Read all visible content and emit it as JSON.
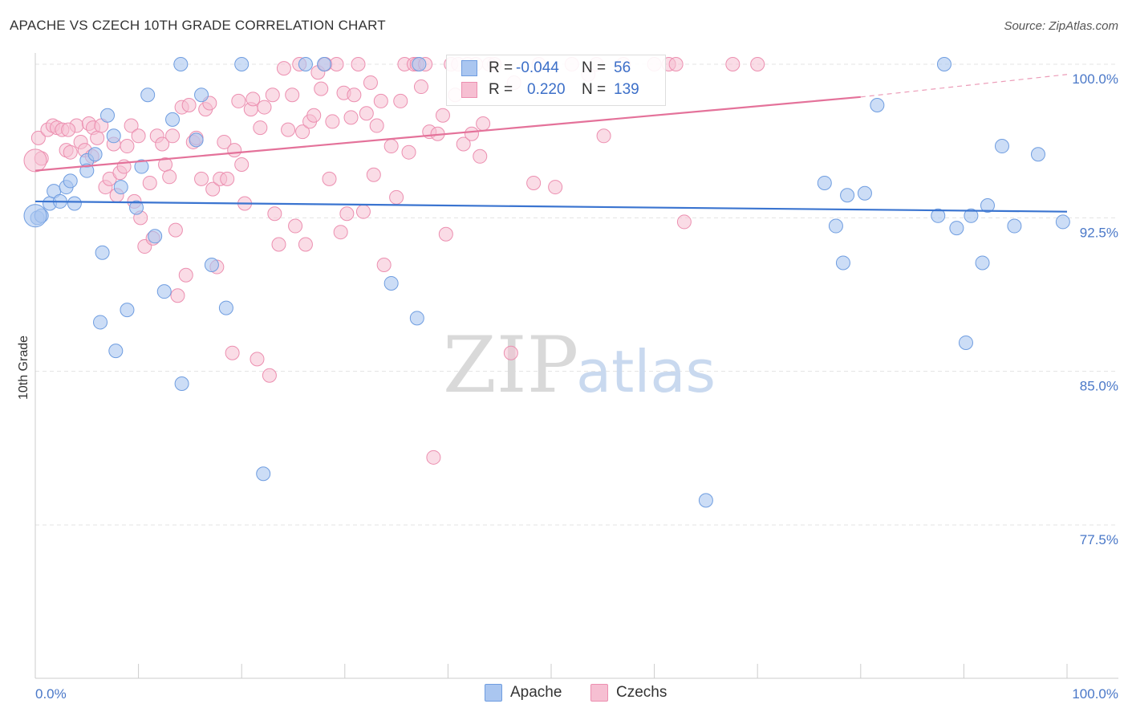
{
  "title": "APACHE VS CZECH 10TH GRADE CORRELATION CHART",
  "source": "Source: ZipAtlas.com",
  "watermark": {
    "zip": "ZIP",
    "atlas": "atlas"
  },
  "legend": {
    "apache": {
      "r_label": "R =",
      "r_value": "-0.044",
      "n_label": "N =",
      "n_value": "56"
    },
    "czechs": {
      "r_label": "R =",
      "r_value": "0.220",
      "n_label": "N =",
      "n_value": "139"
    }
  },
  "bottom_legend": {
    "apache": "Apache",
    "czechs": "Czechs"
  },
  "colors": {
    "apache_fill": "#aac6f0",
    "apache_stroke": "#6f9de0",
    "apache_line": "#3a74d0",
    "czech_fill": "#f6bfd2",
    "czech_stroke": "#ec8fb0",
    "czech_line": "#e4729a",
    "tick_label": "#4a78c8",
    "grid": "#e3e3e3"
  },
  "chart_data": {
    "type": "scatter",
    "title": "APACHE VS CZECH 10TH GRADE CORRELATION CHART",
    "xlabel": "",
    "ylabel": "10th Grade",
    "xlim": [
      0,
      100
    ],
    "ylim": [
      70,
      100.7
    ],
    "x_ticks": [
      "0.0%",
      "100.0%"
    ],
    "y_ticks": [
      {
        "value": 77.5,
        "label": "77.5%"
      },
      {
        "value": 85.0,
        "label": "85.0%"
      },
      {
        "value": 92.5,
        "label": "92.5%"
      },
      {
        "value": 100.0,
        "label": "100.0%"
      }
    ],
    "grid": true,
    "series": [
      {
        "name": "Apache",
        "r": -0.044,
        "n": 56,
        "trend": {
          "x": [
            0,
            100
          ],
          "y": [
            93.3,
            92.8
          ]
        },
        "points": [
          [
            0.2,
            92.5
          ],
          [
            0.6,
            92.6
          ],
          [
            1.4,
            93.2
          ],
          [
            1.8,
            93.8
          ],
          [
            2.4,
            93.3
          ],
          [
            3.0,
            94.0
          ],
          [
            3.4,
            94.3
          ],
          [
            3.8,
            93.2
          ],
          [
            5.0,
            95.3
          ],
          [
            5.0,
            94.8
          ],
          [
            5.8,
            95.6
          ],
          [
            6.3,
            87.4
          ],
          [
            6.5,
            90.8
          ],
          [
            7.0,
            97.5
          ],
          [
            7.6,
            96.5
          ],
          [
            7.8,
            86.0
          ],
          [
            8.3,
            94.0
          ],
          [
            8.9,
            88.0
          ],
          [
            9.8,
            93.0
          ],
          [
            10.3,
            95.0
          ],
          [
            10.9,
            98.5
          ],
          [
            11.6,
            91.6
          ],
          [
            12.5,
            88.9
          ],
          [
            13.3,
            97.3
          ],
          [
            14.1,
            100.0
          ],
          [
            14.2,
            84.4
          ],
          [
            15.6,
            96.3
          ],
          [
            16.1,
            98.5
          ],
          [
            17.1,
            90.2
          ],
          [
            18.5,
            88.1
          ],
          [
            20.0,
            100.0
          ],
          [
            22.1,
            80.0
          ],
          [
            26.2,
            100.0
          ],
          [
            28.0,
            100.0
          ],
          [
            34.5,
            89.3
          ],
          [
            37.0,
            87.6
          ],
          [
            37.2,
            100.0
          ],
          [
            65.0,
            78.7
          ],
          [
            76.5,
            94.2
          ],
          [
            77.6,
            92.1
          ],
          [
            78.3,
            90.3
          ],
          [
            78.7,
            93.6
          ],
          [
            80.4,
            93.7
          ],
          [
            81.6,
            98.0
          ],
          [
            87.5,
            92.6
          ],
          [
            88.1,
            100.0
          ],
          [
            89.3,
            92.0
          ],
          [
            90.2,
            86.4
          ],
          [
            90.7,
            92.6
          ],
          [
            91.8,
            90.3
          ],
          [
            92.3,
            93.1
          ],
          [
            93.7,
            96.0
          ],
          [
            94.9,
            92.1
          ],
          [
            97.2,
            95.6
          ],
          [
            99.6,
            92.3
          ],
          [
            0.0,
            92.6
          ]
        ]
      },
      {
        "name": "Czechs",
        "r": 0.22,
        "n": 139,
        "trend": {
          "x": [
            0,
            80
          ],
          "y": [
            94.8,
            98.4
          ]
        },
        "trend_dashed": {
          "x": [
            80,
            100
          ],
          "y": [
            98.4,
            99.5
          ]
        },
        "points": [
          [
            0.3,
            96.4
          ],
          [
            0.6,
            95.4
          ],
          [
            1.2,
            96.8
          ],
          [
            1.7,
            97.0
          ],
          [
            2.1,
            96.9
          ],
          [
            2.6,
            96.8
          ],
          [
            3.0,
            95.8
          ],
          [
            3.4,
            95.7
          ],
          [
            4.0,
            97.0
          ],
          [
            4.4,
            96.2
          ],
          [
            4.8,
            95.8
          ],
          [
            5.2,
            97.1
          ],
          [
            5.6,
            96.9
          ],
          [
            6.0,
            96.4
          ],
          [
            6.4,
            97.0
          ],
          [
            6.8,
            94.0
          ],
          [
            7.2,
            94.4
          ],
          [
            7.6,
            96.1
          ],
          [
            7.9,
            93.6
          ],
          [
            8.2,
            94.7
          ],
          [
            8.6,
            95.0
          ],
          [
            8.9,
            96.0
          ],
          [
            9.3,
            97.0
          ],
          [
            9.6,
            93.3
          ],
          [
            10.0,
            96.5
          ],
          [
            10.2,
            92.5
          ],
          [
            10.6,
            91.1
          ],
          [
            11.1,
            94.2
          ],
          [
            11.4,
            91.5
          ],
          [
            11.8,
            96.5
          ],
          [
            12.3,
            96.1
          ],
          [
            12.6,
            95.1
          ],
          [
            13.0,
            94.5
          ],
          [
            13.3,
            96.5
          ],
          [
            13.6,
            91.9
          ],
          [
            13.8,
            88.7
          ],
          [
            14.2,
            97.9
          ],
          [
            14.6,
            89.7
          ],
          [
            14.9,
            98.0
          ],
          [
            15.3,
            96.2
          ],
          [
            15.6,
            96.4
          ],
          [
            16.1,
            94.4
          ],
          [
            16.5,
            97.8
          ],
          [
            16.9,
            98.1
          ],
          [
            17.2,
            93.9
          ],
          [
            17.6,
            90.1
          ],
          [
            17.9,
            94.4
          ],
          [
            18.3,
            96.2
          ],
          [
            18.6,
            94.4
          ],
          [
            19.1,
            85.9
          ],
          [
            19.3,
            95.8
          ],
          [
            19.7,
            98.2
          ],
          [
            20.0,
            95.1
          ],
          [
            20.3,
            93.2
          ],
          [
            20.9,
            97.8
          ],
          [
            21.1,
            98.3
          ],
          [
            21.5,
            85.6
          ],
          [
            21.8,
            96.9
          ],
          [
            22.2,
            97.9
          ],
          [
            22.7,
            84.8
          ],
          [
            23.0,
            98.5
          ],
          [
            23.2,
            92.7
          ],
          [
            23.6,
            91.2
          ],
          [
            24.1,
            99.8
          ],
          [
            24.5,
            96.8
          ],
          [
            24.9,
            98.5
          ],
          [
            25.2,
            92.1
          ],
          [
            25.6,
            100.0
          ],
          [
            25.9,
            96.7
          ],
          [
            26.2,
            91.2
          ],
          [
            26.6,
            97.2
          ],
          [
            27.0,
            97.5
          ],
          [
            27.4,
            99.6
          ],
          [
            27.7,
            98.8
          ],
          [
            28.1,
            100.0
          ],
          [
            28.5,
            94.4
          ],
          [
            28.8,
            97.2
          ],
          [
            29.2,
            100.0
          ],
          [
            29.6,
            91.8
          ],
          [
            29.9,
            98.6
          ],
          [
            30.2,
            92.7
          ],
          [
            30.6,
            97.4
          ],
          [
            30.9,
            98.5
          ],
          [
            31.3,
            100.0
          ],
          [
            31.8,
            92.8
          ],
          [
            32.1,
            97.6
          ],
          [
            32.5,
            99.1
          ],
          [
            32.8,
            94.6
          ],
          [
            33.1,
            97.0
          ],
          [
            33.5,
            98.2
          ],
          [
            33.8,
            90.2
          ],
          [
            34.5,
            96.0
          ],
          [
            35.0,
            93.5
          ],
          [
            35.4,
            98.2
          ],
          [
            35.8,
            100.0
          ],
          [
            36.2,
            95.7
          ],
          [
            36.7,
            100.0
          ],
          [
            37.0,
            100.0
          ],
          [
            37.4,
            98.9
          ],
          [
            37.8,
            100.0
          ],
          [
            38.2,
            96.7
          ],
          [
            38.6,
            80.8
          ],
          [
            39.0,
            96.6
          ],
          [
            39.5,
            97.5
          ],
          [
            39.8,
            91.7
          ],
          [
            40.3,
            100.0
          ],
          [
            40.7,
            98.5
          ],
          [
            41.0,
            100.0
          ],
          [
            41.5,
            96.1
          ],
          [
            41.9,
            100.0
          ],
          [
            42.3,
            96.6
          ],
          [
            42.7,
            100.0
          ],
          [
            43.1,
            95.5
          ],
          [
            43.4,
            97.1
          ],
          [
            44.0,
            100.0
          ],
          [
            44.5,
            100.0
          ],
          [
            46.1,
            85.9
          ],
          [
            46.4,
            99.1
          ],
          [
            48.3,
            94.2
          ],
          [
            48.8,
            100.0
          ],
          [
            50.4,
            94.0
          ],
          [
            52.0,
            100.0
          ],
          [
            53.6,
            99.5
          ],
          [
            54.4,
            100.0
          ],
          [
            55.1,
            96.5
          ],
          [
            57.0,
            100.0
          ],
          [
            60.0,
            100.0
          ],
          [
            61.4,
            100.0
          ],
          [
            62.1,
            100.0
          ],
          [
            62.9,
            92.3
          ],
          [
            67.6,
            100.0
          ],
          [
            70.0,
            100.0
          ],
          [
            0.0,
            95.3
          ],
          [
            3.2,
            96.8
          ],
          [
            5.5,
            95.5
          ]
        ]
      }
    ]
  }
}
